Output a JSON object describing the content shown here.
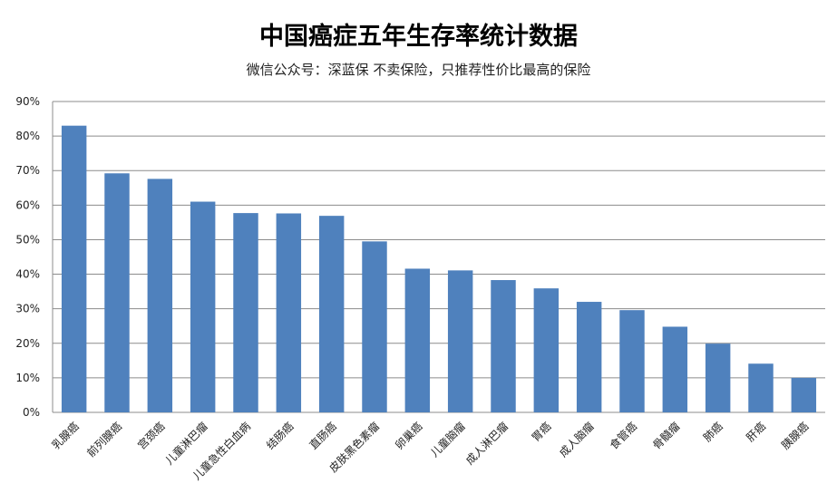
{
  "chart_data": {
    "type": "bar",
    "title": "中国癌症五年生存率统计数据",
    "subtitle": "微信公众号：深蓝保   不卖保险，只推荐性价比最高的保险",
    "categories": [
      "乳腺癌",
      "前列腺癌",
      "宫颈癌",
      "儿童淋巴瘤",
      "儿童急性白血病",
      "结肠癌",
      "直肠癌",
      "皮肤黑色素瘤",
      "卵巢癌",
      "儿童脑瘤",
      "成人淋巴瘤",
      "胃癌",
      "成人脑瘤",
      "食管癌",
      "骨髓瘤",
      "肺癌",
      "肝癌",
      "胰腺癌"
    ],
    "values": [
      83,
      69.2,
      67.6,
      61,
      57.7,
      57.6,
      56.9,
      49.5,
      41.6,
      41.1,
      38.3,
      35.9,
      32,
      29.6,
      24.8,
      19.9,
      14.1,
      10
    ],
    "ylim": [
      0,
      90
    ],
    "yticks": [
      "0%",
      "10%",
      "20%",
      "30%",
      "40%",
      "50%",
      "60%",
      "70%",
      "80%",
      "90%"
    ],
    "grid": true,
    "bar_color": "#4f81bd",
    "grid_color": "#8c8c8c"
  }
}
